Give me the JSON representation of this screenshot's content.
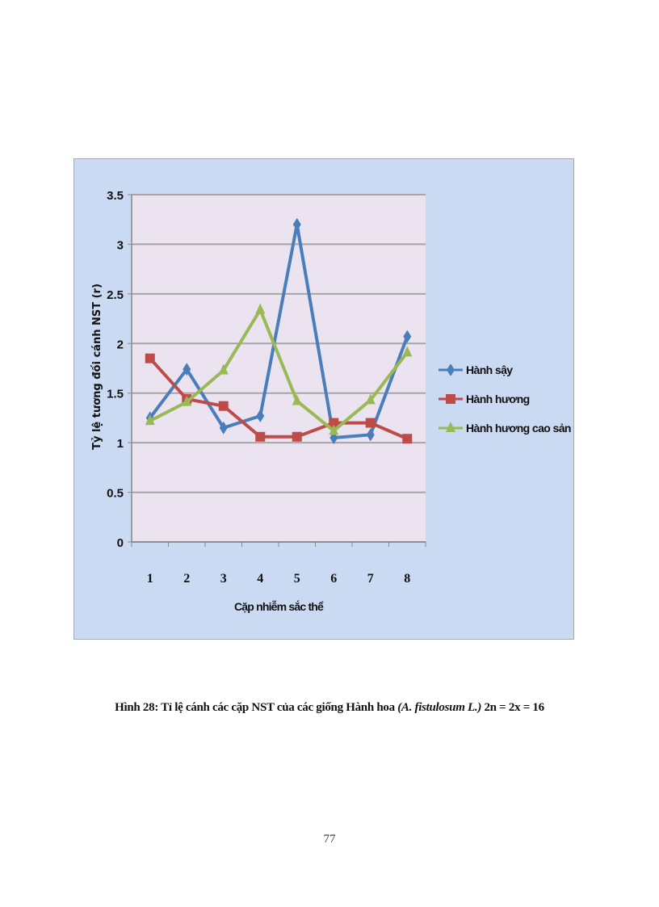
{
  "chart_data": {
    "type": "line",
    "title": "",
    "xlabel": "Cặp nhiễm sắc thể",
    "ylabel": "Tỷ lệ tương đối cánh NST (r)",
    "categories": [
      "1",
      "2",
      "3",
      "4",
      "5",
      "6",
      "7",
      "8"
    ],
    "x": [
      1,
      2,
      3,
      4,
      5,
      6,
      7,
      8
    ],
    "ylim": [
      0,
      3.5
    ],
    "yticks": [
      "0",
      "0.5",
      "1",
      "1.5",
      "2",
      "2.5",
      "3",
      "3.5"
    ],
    "grid": true,
    "legend_position": "right",
    "series": [
      {
        "name": "Hành sậy",
        "marker": "diamond",
        "color": "#4a7ebb",
        "values": [
          1.25,
          1.74,
          1.15,
          1.27,
          3.2,
          1.05,
          1.08,
          2.07
        ]
      },
      {
        "name": "Hành hương",
        "marker": "square",
        "color": "#be4b48",
        "values": [
          1.85,
          1.44,
          1.37,
          1.06,
          1.06,
          1.2,
          1.2,
          1.04
        ]
      },
      {
        "name": "Hành hương cao sản",
        "marker": "triangle",
        "color": "#98b954",
        "values": [
          1.22,
          1.41,
          1.73,
          2.34,
          1.42,
          1.12,
          1.43,
          1.91
        ]
      }
    ]
  },
  "caption": {
    "prefix": "Hình 28: Tỉ lệ cánh các cặp NST của các giống Hành hoa ",
    "species": "(A. fistulosum L.)",
    "suffix": " 2n = 2x  = 16"
  },
  "page_number": "77",
  "colors": {
    "frame_bg": "#c9daf2",
    "plot_bg": "#ebe3f0",
    "gridline": "#a6a6a6"
  }
}
